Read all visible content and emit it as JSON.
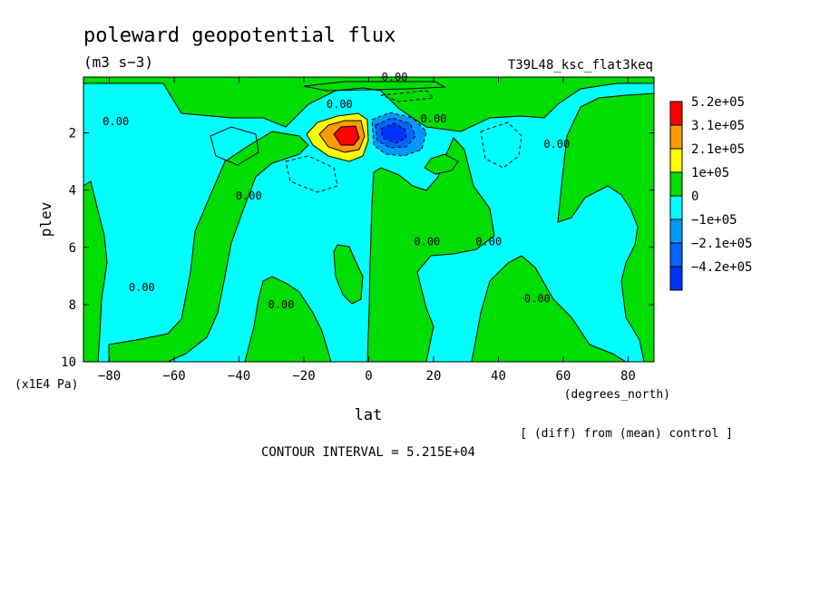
{
  "chart_data": {
    "type": "heatmap",
    "title": "poleward geopotential flux",
    "subtitle": "(m3 s−3)",
    "run_label": "T39L48_ksc_flat3keq",
    "xlabel": "lat",
    "x_units": "(degrees_north)",
    "ylabel": "plev",
    "y_units": "(x1E4 Pa)",
    "x_range": [
      -88,
      88
    ],
    "y_range": [
      10,
      0.05
    ],
    "y_reversed": true,
    "x_ticks": [
      {
        "value": -80,
        "label": "−80"
      },
      {
        "value": -60,
        "label": "−60"
      },
      {
        "value": -40,
        "label": "−40"
      },
      {
        "value": -20,
        "label": "−20"
      },
      {
        "value": 0,
        "label": "0"
      },
      {
        "value": 20,
        "label": "20"
      },
      {
        "value": 40,
        "label": "40"
      },
      {
        "value": 60,
        "label": "60"
      },
      {
        "value": 80,
        "label": "80"
      }
    ],
    "y_ticks": [
      {
        "value": 2,
        "label": "2"
      },
      {
        "value": 4,
        "label": "4"
      },
      {
        "value": 6,
        "label": "6"
      },
      {
        "value": 8,
        "label": "8"
      },
      {
        "value": 10,
        "label": "10"
      }
    ],
    "legend_placement": "right",
    "color_levels": [
      {
        "label": "5.2e+05",
        "color": "#ff0000"
      },
      {
        "label": "3.1e+05",
        "color": "#ff9900"
      },
      {
        "label": "2.1e+05",
        "color": "#ffff00"
      },
      {
        "label": "1e+05",
        "color": "#00dd00"
      },
      {
        "label": "0",
        "color": "#00ffff"
      },
      {
        "label": "−1e+05",
        "color": "#0099ff"
      },
      {
        "label": "−2.1e+05",
        "color": "#0066ff"
      },
      {
        "label": "−4.2e+05",
        "color": "#0033ff"
      }
    ],
    "contour_labels": [
      {
        "text": "0.00",
        "lat": 8,
        "plev": 0.05
      },
      {
        "text": "0.00",
        "lat": -78,
        "plev": 1.6
      },
      {
        "text": "0.00",
        "lat": -9,
        "plev": 1.0
      },
      {
        "text": "0.00",
        "lat": 20,
        "plev": 1.5
      },
      {
        "text": "0.00",
        "lat": -37,
        "plev": 4.2
      },
      {
        "text": "0.00",
        "lat": 18,
        "plev": 5.8
      },
      {
        "text": "0.00",
        "lat": 37,
        "plev": 5.8
      },
      {
        "text": "0.00",
        "lat": -70,
        "plev": 7.4
      },
      {
        "text": "0.00",
        "lat": -27,
        "plev": 8.0
      },
      {
        "text": "0.00",
        "lat": 52,
        "plev": 7.8
      },
      {
        "text": "0.00",
        "lat": 58,
        "plev": 2.4
      }
    ],
    "footnote": "[ (diff) from (mean) control ]",
    "contour_interval": "CONTOUR INTERVAL = 5.215E+04"
  }
}
